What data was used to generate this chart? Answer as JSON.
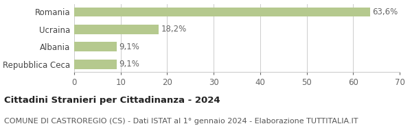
{
  "categories": [
    "Repubblica Ceca",
    "Albania",
    "Ucraina",
    "Romania"
  ],
  "values": [
    9.1,
    9.1,
    18.2,
    63.6
  ],
  "labels": [
    "9,1%",
    "9,1%",
    "18,2%",
    "63,6%"
  ],
  "bar_color": "#b5c98e",
  "xlim": [
    0,
    70
  ],
  "xticks": [
    0,
    10,
    20,
    30,
    40,
    50,
    60,
    70
  ],
  "title_bold": "Cittadini Stranieri per Cittadinanza - 2024",
  "subtitle": "COMUNE DI CASTROREGIO (CS) - Dati ISTAT al 1° gennaio 2024 - Elaborazione TUTTITALIA.IT",
  "background_color": "#ffffff",
  "grid_color": "#cccccc",
  "bar_height": 0.55,
  "label_fontsize": 8.5,
  "tick_fontsize": 8.5,
  "title_fontsize": 9.5,
  "subtitle_fontsize": 8
}
